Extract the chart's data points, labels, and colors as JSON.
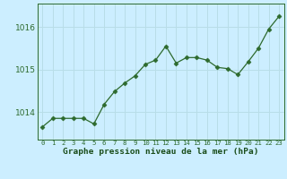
{
  "x": [
    0,
    1,
    2,
    3,
    4,
    5,
    6,
    7,
    8,
    9,
    10,
    11,
    12,
    13,
    14,
    15,
    16,
    17,
    18,
    19,
    20,
    21,
    22,
    23
  ],
  "y": [
    1013.65,
    1013.85,
    1013.85,
    1013.85,
    1013.85,
    1013.72,
    1014.18,
    1014.48,
    1014.68,
    1014.85,
    1015.12,
    1015.22,
    1015.55,
    1015.15,
    1015.28,
    1015.28,
    1015.22,
    1015.05,
    1015.02,
    1014.88,
    1015.18,
    1015.5,
    1015.95,
    1016.25
  ],
  "line_color": "#2d6a2d",
  "marker": "D",
  "marker_size": 2.5,
  "bg_color": "#cceeff",
  "grid_color": "#b8dde8",
  "xlabel": "Graphe pression niveau de la mer (hPa)",
  "xlabel_color": "#1a4d1a",
  "tick_label_color": "#2d6a2d",
  "yticks": [
    1014,
    1015,
    1016
  ],
  "ylim": [
    1013.35,
    1016.55
  ],
  "xlim": [
    -0.5,
    23.5
  ],
  "xtick_labels": [
    "0",
    "1",
    "2",
    "3",
    "4",
    "5",
    "6",
    "7",
    "8",
    "9",
    "10",
    "11",
    "12",
    "13",
    "14",
    "15",
    "16",
    "17",
    "18",
    "19",
    "20",
    "21",
    "22",
    "23"
  ]
}
